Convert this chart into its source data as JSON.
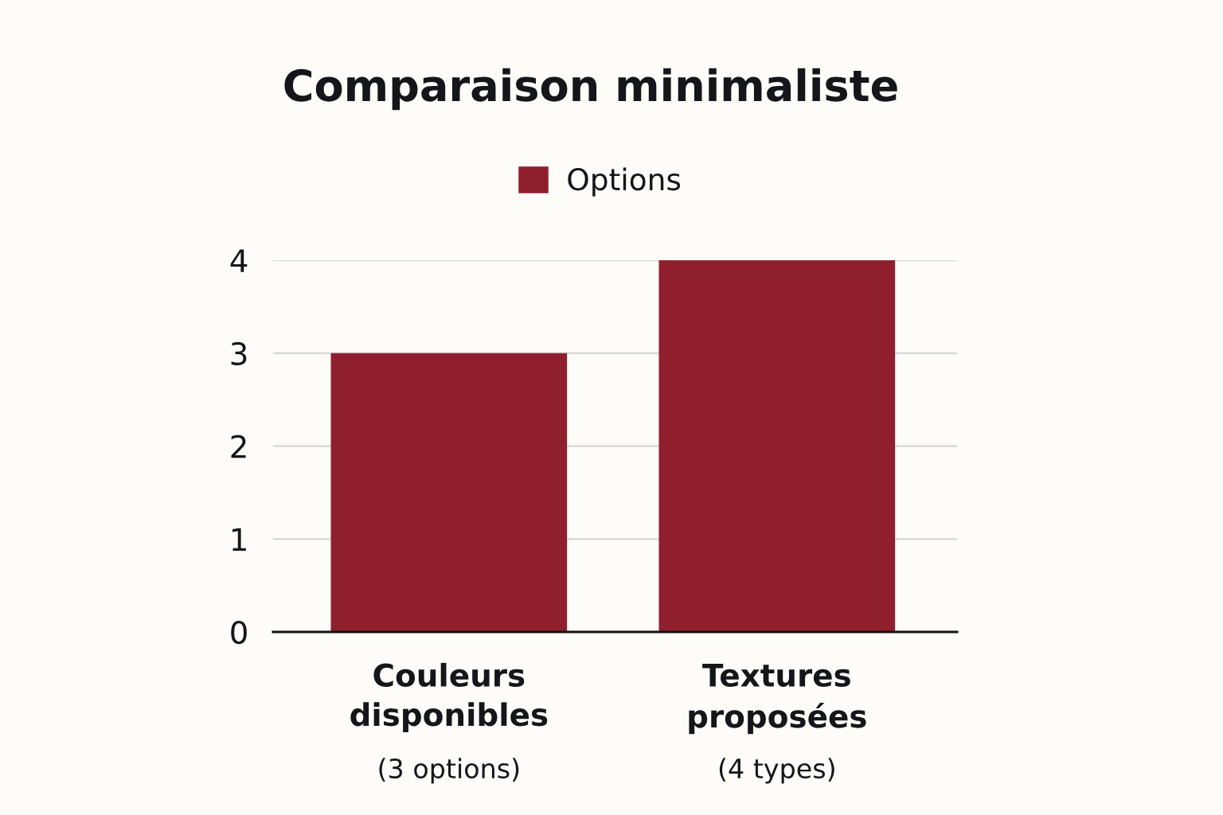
{
  "chart_data": {
    "type": "bar",
    "title": "Comparaison minimaliste",
    "categories": [
      "Couleurs\ndisponibles\n(3 options)",
      "Textures\nproposées\n(4 types)"
    ],
    "series": [
      {
        "name": "Options",
        "color": "#8f1f2d",
        "values": [
          3,
          4
        ]
      }
    ],
    "ylim": [
      0,
      4
    ],
    "yticks": [
      0,
      1,
      2,
      3,
      4
    ],
    "grid": "y",
    "legend": "top"
  }
}
